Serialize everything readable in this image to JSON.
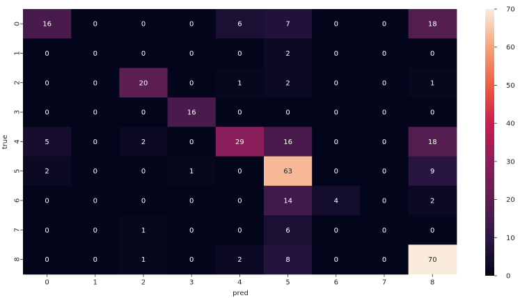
{
  "chart_data": {
    "type": "heatmap",
    "title": "",
    "xlabel": "pred",
    "ylabel": "true",
    "x_categories": [
      "0",
      "1",
      "2",
      "3",
      "4",
      "5",
      "6",
      "7",
      "8"
    ],
    "y_categories": [
      "0",
      "1",
      "2",
      "3",
      "4",
      "5",
      "6",
      "7",
      "8"
    ],
    "values": [
      [
        16,
        0,
        0,
        0,
        6,
        7,
        0,
        0,
        18
      ],
      [
        0,
        0,
        0,
        0,
        0,
        2,
        0,
        0,
        0
      ],
      [
        0,
        0,
        20,
        0,
        1,
        2,
        0,
        0,
        1
      ],
      [
        0,
        0,
        0,
        16,
        0,
        0,
        0,
        0,
        0
      ],
      [
        5,
        0,
        2,
        0,
        29,
        16,
        0,
        0,
        18
      ],
      [
        2,
        0,
        0,
        1,
        0,
        63,
        0,
        0,
        9
      ],
      [
        0,
        0,
        0,
        0,
        0,
        14,
        4,
        0,
        2
      ],
      [
        0,
        0,
        1,
        0,
        0,
        6,
        0,
        0,
        0
      ],
      [
        0,
        0,
        1,
        0,
        2,
        8,
        0,
        0,
        70
      ]
    ],
    "annotated": true,
    "colormap": "rocket",
    "vmin": 0,
    "vmax": 70,
    "colorbar": {
      "ticks": [
        "0",
        "10",
        "20",
        "30",
        "40",
        "50",
        "60",
        "70"
      ],
      "tick_values": [
        0,
        10,
        20,
        30,
        40,
        50,
        60,
        70
      ],
      "placement": "right"
    },
    "grid": false
  }
}
